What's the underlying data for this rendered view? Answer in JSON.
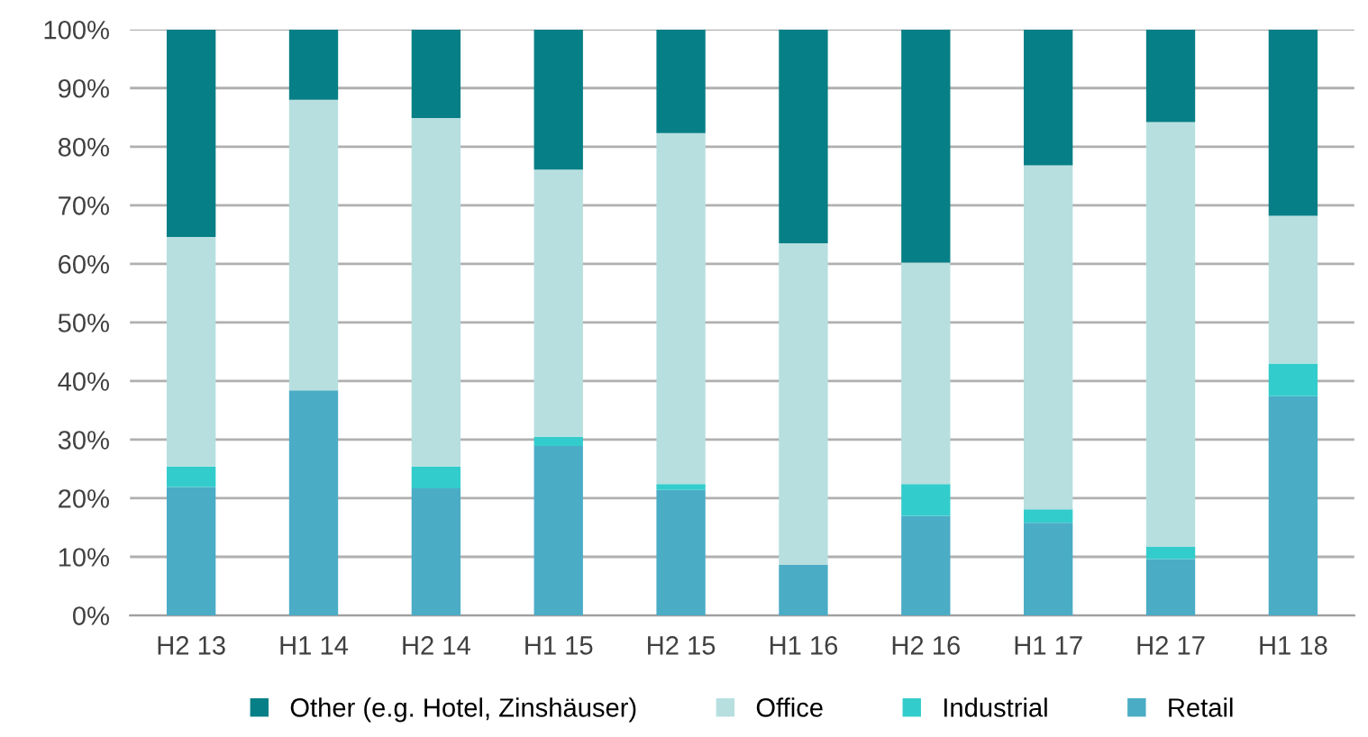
{
  "chart_data": {
    "type": "bar",
    "stacked": true,
    "categories": [
      "H2 13",
      "H1 14",
      "H2 14",
      "H1 15",
      "H2 15",
      "H1 16",
      "H2 16",
      "H1 17",
      "H2 17",
      "H1 18"
    ],
    "series": [
      {
        "name": "Retail",
        "color": "#4bacc6",
        "values": [
          21.9,
          38.4,
          21.7,
          28.9,
          21.4,
          8.6,
          17.0,
          15.8,
          9.6,
          37.4
        ]
      },
      {
        "name": "Industrial",
        "color": "#33cccc",
        "values": [
          3.5,
          0,
          3.7,
          1.6,
          1.0,
          0,
          5.4,
          2.3,
          2.1,
          5.6
        ]
      },
      {
        "name": "Office",
        "color": "#b7dfdf",
        "values": [
          39.2,
          49.6,
          59.5,
          45.6,
          59.9,
          54.9,
          37.8,
          58.7,
          72.5,
          25.2
        ]
      },
      {
        "name": "Other (e.g. Hotel, Zinshäuser)",
        "color": "#077f86",
        "values": [
          35.4,
          12.0,
          15.1,
          23.9,
          17.7,
          36.5,
          39.8,
          23.2,
          15.8,
          31.8
        ]
      }
    ],
    "ylim": [
      0,
      100
    ],
    "yticks": [
      {
        "value": 0,
        "label": "0%"
      },
      {
        "value": 10,
        "label": "10%"
      },
      {
        "value": 20,
        "label": "20%"
      },
      {
        "value": 30,
        "label": "30%"
      },
      {
        "value": 40,
        "label": "40%"
      },
      {
        "value": 50,
        "label": "50%"
      },
      {
        "value": 60,
        "label": "60%"
      },
      {
        "value": 70,
        "label": "70%"
      },
      {
        "value": 80,
        "label": "80%"
      },
      {
        "value": 90,
        "label": "90%"
      },
      {
        "value": 100,
        "label": "100%"
      }
    ],
    "grid": "y",
    "legend": "bottom"
  }
}
